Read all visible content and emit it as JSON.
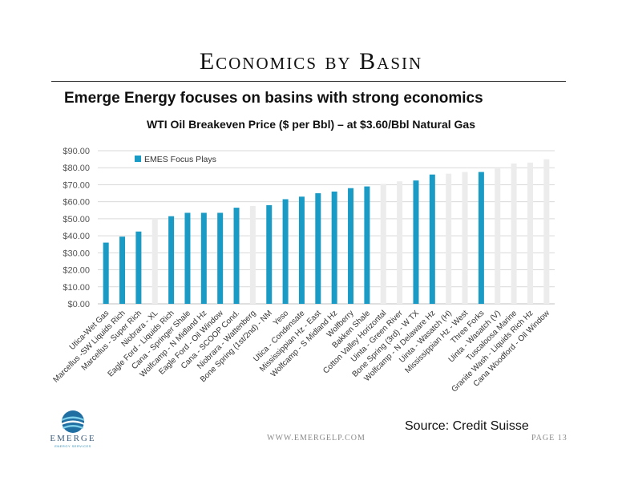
{
  "slide": {
    "title": "Economics by Basin",
    "subtitle": "Emerge Energy focuses on basins with strong economics",
    "source": "Source:  Credit Suisse",
    "website": "WWW.EMERGELP.COM",
    "page": "PAGE 13",
    "logo_text": "EMERGE",
    "logo_tagline": "ENERGY SERVICES"
  },
  "colors": {
    "focus": "#1a9bc6",
    "other": "#ececec",
    "grid": "#d9d9d9",
    "axis_text": "#555555"
  },
  "chart_data": {
    "type": "bar",
    "title": "WTI Oil Breakeven Price ($ per Bbl) – at $3.60/Bbl Natural Gas",
    "xlabel": "",
    "ylabel": "",
    "ylim": [
      0,
      90
    ],
    "yticks": [
      "$0.00",
      "$10.00",
      "$20.00",
      "$30.00",
      "$40.00",
      "$50.00",
      "$60.00",
      "$70.00",
      "$80.00",
      "$90.00"
    ],
    "grid": true,
    "legend": {
      "position": "top-left",
      "entries": [
        {
          "name": "EMES Focus Plays",
          "color": "#1a9bc6"
        }
      ]
    },
    "categories": [
      "Utica-Wet Gas",
      "Marcellus -SW Liquids Rich",
      "Marcellus - Super Rich",
      "Niobrara - XL",
      "Eagle Ford - Liquids Rich",
      "Cana - Springer Shale",
      "Wolfcamp - N Midland Hz",
      "Eagle Ford - Oil Window",
      "Cana - SCOOP Cond.",
      "Niobrara - Wattenberg",
      "Bone Spring (1st/2nd) - NM",
      "Yeso",
      "Utica - Condensate",
      "Mississippian Hz - East",
      "Wolfcamp - S Midland Hz",
      "Wolfberry",
      "Bakken Shale",
      "Cotton Valley Horizontal",
      "Uinta - Green River",
      "Bone Spring (3rd) - W TX",
      "Wolfcamp - N Delaware Hz",
      "Uinta - Wasatch (H)",
      "Mississippian Hz - West",
      "Three Forks",
      "Uinta - Wasatch (V)",
      "Tuscaloosa Marine",
      "Granite Wash - Liquids Rich Hz",
      "Cana Woodford - Oil Window"
    ],
    "values": [
      36,
      39.5,
      42.5,
      50,
      51.5,
      53.5,
      53.5,
      53.5,
      56.5,
      57.5,
      58,
      61.5,
      63,
      65,
      66,
      68,
      69,
      70.5,
      72,
      72.5,
      76,
      76.5,
      77.5,
      77.5,
      79.5,
      82.5,
      83,
      85
    ],
    "focus": [
      true,
      true,
      true,
      false,
      true,
      true,
      true,
      true,
      true,
      false,
      true,
      true,
      true,
      true,
      true,
      true,
      true,
      false,
      false,
      true,
      true,
      false,
      false,
      true,
      false,
      false,
      false,
      false
    ]
  }
}
